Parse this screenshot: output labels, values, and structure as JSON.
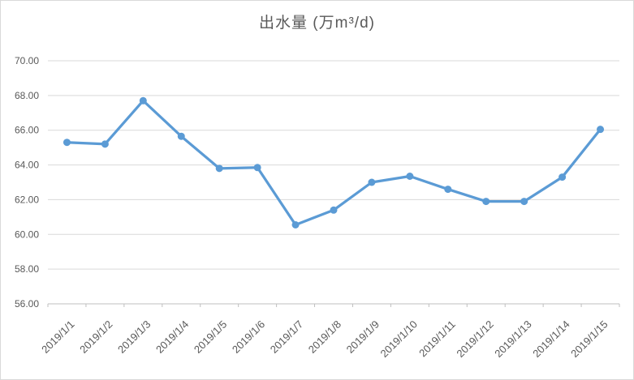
{
  "chart_data": {
    "type": "line",
    "title": "出水量 (万m³/d)",
    "categories": [
      "2019/1/1",
      "2019/1/2",
      "2019/1/3",
      "2019/1/4",
      "2019/1/5",
      "2019/1/6",
      "2019/1/7",
      "2019/1/8",
      "2019/1/9",
      "2019/1/10",
      "2019/1/11",
      "2019/1/12",
      "2019/1/13",
      "2019/1/14",
      "2019/1/15"
    ],
    "values": [
      65.3,
      65.2,
      67.7,
      65.65,
      63.8,
      63.85,
      60.55,
      61.4,
      63.0,
      63.35,
      62.6,
      61.9,
      61.9,
      63.3,
      66.05
    ],
    "xlabel": "",
    "ylabel": "",
    "ylim": [
      56,
      70
    ],
    "ytick_step": 2,
    "ytick_decimals": 2,
    "grid": true,
    "legend": "none",
    "marker": "circle",
    "x_label_rotation_deg": -45,
    "colors": {
      "line": "#5B9BD5",
      "gridline": "#D9D9D9",
      "axis": "#BFBFBF",
      "tick_text": "#595959",
      "title_text": "#595959",
      "background": "#FFFFFF",
      "border": "#D9D9D9"
    }
  }
}
